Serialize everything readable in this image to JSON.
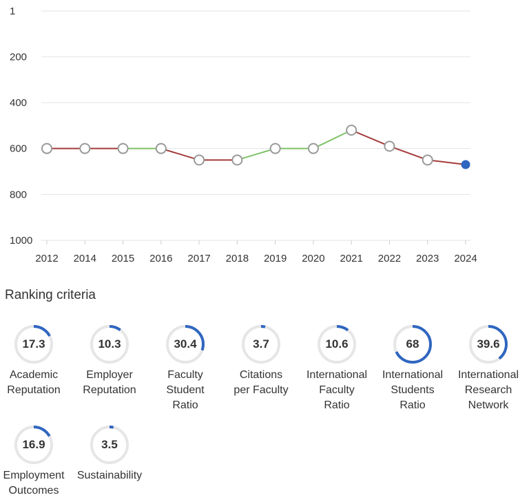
{
  "chart_data": {
    "type": "line",
    "categories": [
      "2012",
      "2014",
      "2015",
      "2016",
      "2017",
      "2018",
      "2019",
      "2020",
      "2021",
      "2022",
      "2023",
      "2024"
    ],
    "values": [
      600,
      600,
      600,
      600,
      650,
      650,
      600,
      600,
      520,
      590,
      650,
      670
    ],
    "y_ticks": [
      "1",
      "200",
      "400",
      "600",
      "800",
      "1000"
    ],
    "ylim": [
      1,
      1000
    ],
    "y_inverted": true,
    "grid": true,
    "colors": {
      "worse": "#a33a3a",
      "better": "#7cc166",
      "marker_fill": "#ffffff",
      "marker_stroke": "#999999",
      "current": "#2f66c0"
    }
  },
  "criteria": {
    "title": "Ranking criteria",
    "items": [
      {
        "value": "17.3",
        "label": "Academic\nReputation"
      },
      {
        "value": "10.3",
        "label": "Employer\nReputation"
      },
      {
        "value": "30.4",
        "label": "Faculty\nStudent\nRatio"
      },
      {
        "value": "3.7",
        "label": "Citations\nper Faculty"
      },
      {
        "value": "10.6",
        "label": "International\nFaculty\nRatio"
      },
      {
        "value": "68",
        "label": "International\nStudents\nRatio"
      },
      {
        "value": "39.6",
        "label": "International\nResearch\nNetwork"
      },
      {
        "value": "16.9",
        "label": "Employment\nOutcomes"
      },
      {
        "value": "3.5",
        "label": "Sustainability"
      }
    ],
    "colors": {
      "track": "#e6e6e6",
      "arc": "#2f66c0"
    }
  }
}
